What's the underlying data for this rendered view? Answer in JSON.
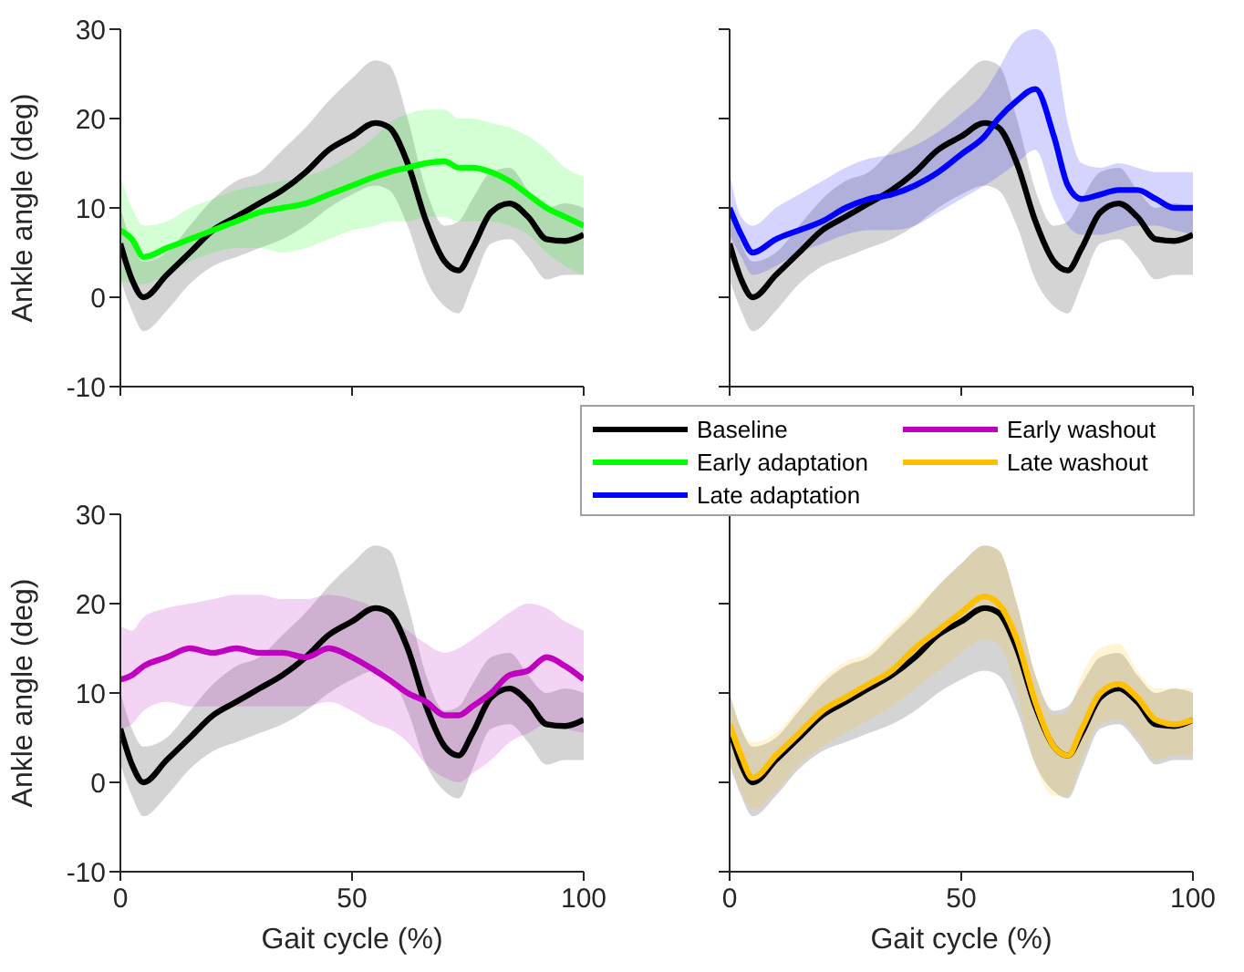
{
  "chart_data": [
    {
      "type": "line",
      "ylabel": "Ankle angle (deg)",
      "xlim": [
        0,
        100
      ],
      "ylim": [
        -10,
        30
      ],
      "xticks": [
        0,
        50,
        100
      ],
      "yticks": [
        -10,
        0,
        10,
        20,
        30
      ],
      "tick_labels": "y",
      "legend": "bottom right",
      "x": [
        0,
        2.5,
        5,
        10,
        15,
        20,
        25,
        30,
        35,
        40,
        45,
        50,
        55,
        58,
        62,
        66,
        70,
        73,
        76,
        80,
        84,
        88,
        92,
        96,
        100
      ],
      "series": [
        {
          "name": "Baseline",
          "color": "#000000",
          "values": [
            6,
            2,
            0,
            2.5,
            5,
            7.5,
            9,
            10.5,
            12,
            14,
            16.5,
            18,
            19.5,
            19,
            15,
            8.5,
            4,
            3,
            5.5,
            9.5,
            10.5,
            9,
            6.5,
            6.3,
            7
          ],
          "lower": [
            2,
            -1.5,
            -3.8,
            -1.5,
            1.5,
            3.5,
            4.5,
            5.5,
            6.5,
            8,
            10,
            11.5,
            12.5,
            12,
            8,
            2,
            -1,
            -1.8,
            1.5,
            6,
            6.5,
            4.5,
            2,
            2.5,
            2.5
          ],
          "upper": [
            10,
            6,
            4,
            5,
            8,
            11,
            13,
            14,
            16.5,
            19,
            22,
            24.5,
            26.5,
            26,
            20,
            12,
            8,
            8.5,
            11,
            14,
            14.5,
            12,
            10,
            10.5,
            10
          ]
        },
        {
          "name": "Early adaptation",
          "color": "#00ff00",
          "values": [
            7.5,
            6.5,
            4.5,
            5.5,
            6.5,
            7.5,
            8.5,
            9.5,
            10,
            10.5,
            11.5,
            12.5,
            13.5,
            14,
            14.5,
            15,
            15.2,
            14.5,
            14.5,
            14,
            13,
            11.5,
            10,
            9,
            8
          ],
          "lower": [
            2,
            1.5,
            1.5,
            2.5,
            4,
            5,
            5.5,
            5.5,
            5,
            5.5,
            6.5,
            7.5,
            8,
            8.5,
            8.5,
            9,
            9,
            8.5,
            8.5,
            8.5,
            8,
            7,
            5,
            3.5,
            2.5
          ],
          "upper": [
            13.5,
            10,
            8,
            8.5,
            10,
            11,
            12,
            12.5,
            13,
            13.5,
            14.5,
            16,
            18,
            19.5,
            20.5,
            21,
            21,
            20,
            20,
            19.5,
            19,
            18,
            16.5,
            14.5,
            13.5
          ]
        }
      ]
    },
    {
      "type": "line",
      "xlim": [
        0,
        100
      ],
      "ylim": [
        -10,
        30
      ],
      "xticks": [
        0,
        50,
        100
      ],
      "yticks": [
        -10,
        0,
        10,
        20,
        30
      ],
      "tick_labels": false,
      "legend": "bottom",
      "x": [
        0,
        2.5,
        5,
        10,
        15,
        20,
        25,
        30,
        35,
        40,
        45,
        50,
        55,
        58,
        62,
        66,
        70,
        73,
        76,
        80,
        84,
        88,
        92,
        96,
        100
      ],
      "series": [
        {
          "name": "Baseline",
          "color": "#000000",
          "values": [
            6,
            2,
            0,
            2.5,
            5,
            7.5,
            9,
            10.5,
            12,
            14,
            16.5,
            18,
            19.5,
            19,
            15,
            8.5,
            4,
            3,
            5.5,
            9.5,
            10.5,
            9,
            6.5,
            6.3,
            7
          ],
          "lower": [
            2,
            -1.5,
            -3.8,
            -1.5,
            1.5,
            3.5,
            4.5,
            5.5,
            6.5,
            8,
            10,
            11.5,
            12.5,
            12,
            8,
            2,
            -1,
            -1.8,
            1.5,
            6,
            6.5,
            4.5,
            2,
            2.5,
            2.5
          ],
          "upper": [
            10,
            6,
            4,
            5,
            8,
            11,
            13,
            14,
            16.5,
            19,
            22,
            24.5,
            26.5,
            26,
            20,
            12,
            8,
            8.5,
            11,
            14,
            14.5,
            12,
            10,
            10.5,
            10
          ]
        },
        {
          "name": "Late adaptation",
          "color": "#0000ff",
          "values": [
            10,
            7,
            5,
            6.5,
            7.5,
            8.5,
            10,
            11,
            11.5,
            12.5,
            14,
            16,
            18,
            20,
            22,
            23.3,
            18,
            12.5,
            11,
            11.5,
            12,
            12,
            11,
            10,
            10
          ],
          "lower": [
            7,
            4.5,
            2.5,
            3.5,
            5,
            6,
            7,
            7.5,
            7.5,
            8,
            9.5,
            11,
            12.5,
            13.5,
            15,
            16.5,
            11,
            8,
            7,
            7,
            7.5,
            8,
            8,
            7.5,
            7
          ],
          "upper": [
            14,
            9,
            8,
            10,
            11.5,
            13,
            14.5,
            15.5,
            16,
            17,
            18.5,
            20.5,
            23,
            25.5,
            29,
            30,
            28,
            19.5,
            15,
            14.5,
            15,
            14.5,
            14,
            14,
            14
          ]
        }
      ]
    },
    {
      "type": "line",
      "xlabel": "Gait cycle (%)",
      "ylabel": "Ankle angle (deg)",
      "xlim": [
        0,
        100
      ],
      "ylim": [
        -10,
        30
      ],
      "xticks": [
        0,
        50,
        100
      ],
      "yticks": [
        -10,
        0,
        10,
        20,
        30
      ],
      "legend": "top right",
      "x": [
        0,
        2.5,
        5,
        10,
        15,
        20,
        25,
        30,
        35,
        40,
        45,
        50,
        55,
        58,
        62,
        66,
        70,
        73,
        76,
        80,
        84,
        88,
        92,
        96,
        100
      ],
      "series": [
        {
          "name": "Baseline",
          "color": "#000000",
          "values": [
            6,
            2,
            0,
            2.5,
            5,
            7.5,
            9,
            10.5,
            12,
            14,
            16.5,
            18,
            19.5,
            19,
            15,
            8.5,
            4,
            3,
            5.5,
            9.5,
            10.5,
            9,
            6.5,
            6.3,
            7
          ],
          "lower": [
            2,
            -1.5,
            -3.8,
            -1.5,
            1.5,
            3.5,
            4.5,
            5.5,
            6.5,
            8,
            10,
            11.5,
            12.5,
            12,
            8,
            2,
            -1,
            -1.8,
            1.5,
            6,
            6.5,
            4.5,
            2,
            2.5,
            2.5
          ],
          "upper": [
            10,
            6,
            4,
            5,
            8,
            11,
            13,
            14,
            16.5,
            19,
            22,
            24.5,
            26.5,
            26,
            20,
            12,
            8,
            8.5,
            11,
            14,
            14.5,
            12,
            10,
            10.5,
            10
          ]
        },
        {
          "name": "Early washout",
          "color": "#c000c0",
          "values": [
            11.5,
            12,
            13,
            14,
            15,
            14.5,
            15,
            14.5,
            14.5,
            14,
            15,
            14,
            12.5,
            11.5,
            10,
            9,
            7.5,
            7.5,
            8.5,
            10,
            12,
            12.5,
            14,
            13,
            11.5
          ],
          "lower": [
            6,
            6.5,
            8,
            9,
            8.5,
            8.5,
            8.5,
            8.5,
            8.5,
            8.5,
            9,
            8,
            6.5,
            6,
            4.5,
            2,
            0.5,
            0,
            1,
            2.5,
            4.5,
            5.5,
            6.5,
            6,
            5.5
          ],
          "upper": [
            17.5,
            17,
            18.5,
            19.5,
            20,
            20.5,
            21,
            21,
            20.5,
            20.5,
            21,
            20.5,
            19.5,
            18.5,
            17,
            15.5,
            14.5,
            15,
            16,
            17.5,
            19,
            20,
            19.5,
            18,
            17
          ]
        }
      ]
    },
    {
      "type": "line",
      "xlabel": "Gait cycle (%)",
      "xlim": [
        0,
        100
      ],
      "ylim": [
        -10,
        30
      ],
      "xticks": [
        0,
        50,
        100
      ],
      "yticks": [
        -10,
        0,
        10,
        20,
        30
      ],
      "tick_labels": "x",
      "legend": "top",
      "x": [
        0,
        2.5,
        5,
        10,
        15,
        20,
        25,
        30,
        35,
        40,
        45,
        50,
        55,
        58,
        62,
        66,
        70,
        73,
        76,
        80,
        84,
        88,
        92,
        96,
        100
      ],
      "series": [
        {
          "name": "Baseline",
          "color": "#000000",
          "values": [
            6,
            2,
            0,
            2.5,
            5,
            7.5,
            9,
            10.5,
            12,
            14,
            16.5,
            18,
            19.5,
            19,
            15,
            8.5,
            4,
            3,
            5.5,
            9.5,
            10.5,
            9,
            6.5,
            6.3,
            7
          ],
          "lower": [
            2,
            -1.5,
            -3.8,
            -1.5,
            1.5,
            3.5,
            4.5,
            5.5,
            6.5,
            8,
            10,
            11.5,
            12.5,
            12,
            8,
            2,
            -1,
            -1.8,
            1.5,
            6,
            6.5,
            4.5,
            2,
            2.5,
            2.5
          ],
          "upper": [
            10,
            6,
            4,
            5,
            8,
            11,
            13,
            14,
            16.5,
            19,
            22,
            24.5,
            26.5,
            26,
            20,
            12,
            8,
            8.5,
            11,
            14,
            14.5,
            12,
            10,
            10.5,
            10
          ]
        },
        {
          "name": "Late washout",
          "color": "#ffc000",
          "values": [
            6.5,
            3,
            0.5,
            3,
            5.5,
            8,
            9.5,
            11,
            12.5,
            15,
            17,
            19,
            20.8,
            20,
            16,
            9,
            4,
            3,
            6,
            10,
            11,
            9.5,
            7,
            6.5,
            7
          ],
          "lower": [
            2.5,
            -1,
            -3,
            -1,
            2,
            4,
            5.5,
            7,
            8.5,
            10.5,
            12.5,
            14.5,
            16,
            15.5,
            10,
            2,
            -1.5,
            -1.5,
            2.5,
            6.5,
            7,
            5,
            2.5,
            3,
            3
          ],
          "upper": [
            10,
            6,
            4.5,
            5.5,
            8.5,
            11.5,
            13.5,
            14.5,
            17,
            19.5,
            22,
            24.5,
            26.5,
            26,
            20,
            12,
            7.5,
            8,
            12,
            15,
            15.5,
            12.5,
            10.5,
            10.5,
            10.5
          ]
        }
      ]
    }
  ]
}
